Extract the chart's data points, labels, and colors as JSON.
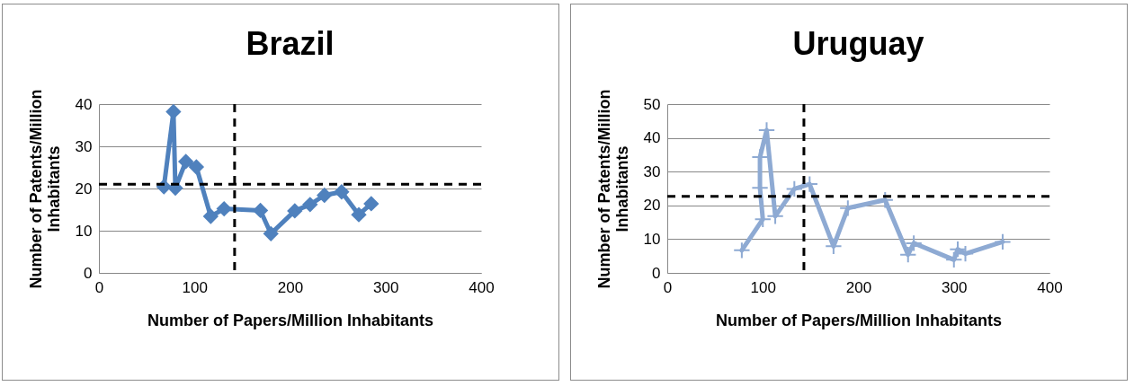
{
  "chart_data": [
    {
      "type": "line",
      "title": "Brazil",
      "xlabel": "Number of Papers/Million Inhabitants",
      "ylabel": "Number of Patents/Million Inhabitants",
      "xlim": [
        0,
        400
      ],
      "xticks": [
        0,
        100,
        200,
        300,
        400
      ],
      "ylim": [
        0,
        40
      ],
      "yticks": [
        0,
        10,
        20,
        30,
        40
      ],
      "grid": "y",
      "marker": "diamond",
      "series": [
        {
          "color": "#4f81bd",
          "x": [
            68,
            78,
            80,
            91,
            102,
            117,
            131,
            169,
            180,
            205,
            221,
            236,
            254,
            272,
            285
          ],
          "values": [
            20.4,
            38.2,
            20.1,
            26.4,
            25.1,
            13.4,
            15.2,
            14.8,
            9.3,
            14.7,
            16.2,
            18.4,
            19.2,
            13.8,
            16.4
          ]
        }
      ],
      "ref_lines": [
        {
          "axis": "y",
          "value": 21,
          "color": "#000000",
          "line_style": "dashed"
        },
        {
          "axis": "x",
          "value": 142,
          "color": "#000000",
          "line_style": "dashed"
        }
      ]
    },
    {
      "type": "line",
      "title": "Uruguay",
      "xlabel": "Number of Papers/Million Inhabitants",
      "ylabel": "Number of Patents/Million Inhabitants",
      "xlim": [
        0,
        400
      ],
      "xticks": [
        0,
        100,
        200,
        300,
        400
      ],
      "ylim": [
        0,
        50
      ],
      "yticks": [
        0,
        10,
        20,
        30,
        40,
        50
      ],
      "grid": "y",
      "marker": "cross",
      "series": [
        {
          "color": "#8eaad3",
          "x": [
            78,
            100,
            97,
            97,
            104,
            113,
            133,
            149,
            174,
            189,
            228,
            252,
            258,
            300,
            304,
            312,
            351
          ],
          "values": [
            6.7,
            15.9,
            25.2,
            34.3,
            42.3,
            16.8,
            24.9,
            26.3,
            7.9,
            19.2,
            21.6,
            5.4,
            8.8,
            3.9,
            7,
            5.7,
            9.2
          ]
        }
      ],
      "ref_lines": [
        {
          "axis": "y",
          "value": 22.7,
          "color": "#000000",
          "line_style": "dashed"
        },
        {
          "axis": "x",
          "value": 143,
          "color": "#000000",
          "line_style": "dashed"
        }
      ]
    }
  ]
}
